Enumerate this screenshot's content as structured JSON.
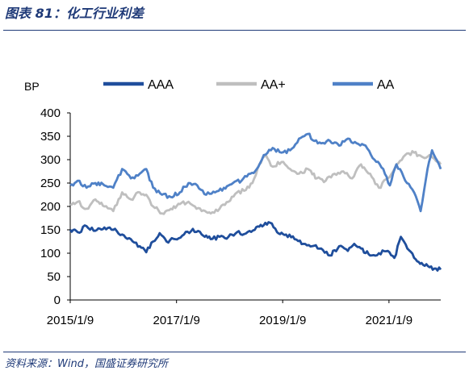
{
  "figure_title": "图表 81：化工行业利差",
  "source": "资料来源：Wind，国盛证券研究所",
  "chart_data": {
    "type": "line",
    "ylabel": "BP",
    "ylim": [
      0,
      400
    ],
    "yticks": [
      0,
      50,
      100,
      150,
      200,
      250,
      300,
      350,
      400
    ],
    "xtick_labels": [
      "2015/1/9",
      "2017/1/9",
      "2019/1/9",
      "2021/1/9"
    ],
    "xtick_values": [
      "2015-01-09",
      "2017-01-09",
      "2019-01-09",
      "2021-01-09"
    ],
    "xlim": [
      "2015-01-09",
      "2021-12-31"
    ],
    "grid": false,
    "legend_position": "top",
    "series": [
      {
        "name": "AAA",
        "color": "#1f4e9c",
        "points": [
          [
            "2015-01-09",
            150
          ],
          [
            "2015-03-01",
            145
          ],
          [
            "2015-05-01",
            158
          ],
          [
            "2015-07-01",
            148
          ],
          [
            "2015-09-01",
            155
          ],
          [
            "2015-11-01",
            150
          ],
          [
            "2016-01-01",
            140
          ],
          [
            "2016-03-01",
            130
          ],
          [
            "2016-05-01",
            115
          ],
          [
            "2016-06-15",
            102
          ],
          [
            "2016-08-01",
            125
          ],
          [
            "2016-09-15",
            143
          ],
          [
            "2016-11-01",
            125
          ],
          [
            "2017-01-01",
            130
          ],
          [
            "2017-03-01",
            140
          ],
          [
            "2017-05-01",
            152
          ],
          [
            "2017-07-01",
            140
          ],
          [
            "2017-09-01",
            130
          ],
          [
            "2017-11-01",
            135
          ],
          [
            "2018-01-01",
            135
          ],
          [
            "2018-03-01",
            145
          ],
          [
            "2018-05-01",
            142
          ],
          [
            "2018-07-01",
            150
          ],
          [
            "2018-09-01",
            160
          ],
          [
            "2018-10-15",
            165
          ],
          [
            "2018-12-01",
            145
          ],
          [
            "2019-02-01",
            140
          ],
          [
            "2019-04-01",
            130
          ],
          [
            "2019-06-01",
            120
          ],
          [
            "2019-08-01",
            115
          ],
          [
            "2019-10-01",
            110
          ],
          [
            "2019-12-01",
            95
          ],
          [
            "2020-02-01",
            115
          ],
          [
            "2020-04-01",
            105
          ],
          [
            "2020-05-15",
            120
          ],
          [
            "2020-07-01",
            110
          ],
          [
            "2020-09-01",
            95
          ],
          [
            "2020-11-01",
            100
          ],
          [
            "2021-01-01",
            105
          ],
          [
            "2021-02-15",
            90
          ],
          [
            "2021-04-01",
            135
          ],
          [
            "2021-05-15",
            110
          ],
          [
            "2021-07-01",
            90
          ],
          [
            "2021-09-01",
            75
          ],
          [
            "2021-10-15",
            70
          ],
          [
            "2021-12-31",
            65
          ]
        ]
      },
      {
        "name": "AA+",
        "color": "#bfbfbf",
        "points": [
          [
            "2015-01-09",
            205
          ],
          [
            "2015-03-01",
            210
          ],
          [
            "2015-05-01",
            195
          ],
          [
            "2015-07-01",
            215
          ],
          [
            "2015-09-01",
            200
          ],
          [
            "2015-11-01",
            190
          ],
          [
            "2016-01-01",
            230
          ],
          [
            "2016-03-01",
            215
          ],
          [
            "2016-05-01",
            230
          ],
          [
            "2016-06-15",
            225
          ],
          [
            "2016-08-01",
            200
          ],
          [
            "2016-10-01",
            185
          ],
          [
            "2016-12-01",
            195
          ],
          [
            "2017-02-01",
            205
          ],
          [
            "2017-04-01",
            210
          ],
          [
            "2017-05-15",
            200
          ],
          [
            "2017-07-01",
            190
          ],
          [
            "2017-09-01",
            185
          ],
          [
            "2017-11-01",
            195
          ],
          [
            "2018-01-01",
            210
          ],
          [
            "2018-03-01",
            230
          ],
          [
            "2018-05-01",
            235
          ],
          [
            "2018-06-15",
            250
          ],
          [
            "2018-08-01",
            290
          ],
          [
            "2018-09-15",
            310
          ],
          [
            "2018-11-01",
            285
          ],
          [
            "2019-01-01",
            295
          ],
          [
            "2019-03-01",
            280
          ],
          [
            "2019-05-01",
            270
          ],
          [
            "2019-07-01",
            280
          ],
          [
            "2019-09-01",
            260
          ],
          [
            "2019-11-01",
            255
          ],
          [
            "2020-01-01",
            270
          ],
          [
            "2020-03-01",
            275
          ],
          [
            "2020-05-01",
            260
          ],
          [
            "2020-07-01",
            290
          ],
          [
            "2020-09-01",
            270
          ],
          [
            "2020-11-01",
            240
          ],
          [
            "2021-01-01",
            260
          ],
          [
            "2021-03-01",
            290
          ],
          [
            "2021-05-01",
            310
          ],
          [
            "2021-07-01",
            315
          ],
          [
            "2021-09-01",
            305
          ],
          [
            "2021-10-15",
            310
          ],
          [
            "2021-12-31",
            290
          ]
        ]
      },
      {
        "name": "AA",
        "color": "#4f81c7",
        "points": [
          [
            "2015-01-09",
            245
          ],
          [
            "2015-03-01",
            255
          ],
          [
            "2015-05-01",
            240
          ],
          [
            "2015-07-01",
            250
          ],
          [
            "2015-09-01",
            245
          ],
          [
            "2015-11-01",
            240
          ],
          [
            "2016-01-01",
            280
          ],
          [
            "2016-03-01",
            260
          ],
          [
            "2016-05-01",
            270
          ],
          [
            "2016-06-15",
            280
          ],
          [
            "2016-08-01",
            240
          ],
          [
            "2016-10-01",
            225
          ],
          [
            "2016-12-01",
            220
          ],
          [
            "2017-02-01",
            230
          ],
          [
            "2017-04-01",
            250
          ],
          [
            "2017-06-01",
            245
          ],
          [
            "2017-08-01",
            225
          ],
          [
            "2017-10-01",
            230
          ],
          [
            "2017-12-01",
            240
          ],
          [
            "2018-02-01",
            250
          ],
          [
            "2018-04-01",
            255
          ],
          [
            "2018-06-01",
            270
          ],
          [
            "2018-07-15",
            280
          ],
          [
            "2018-09-01",
            310
          ],
          [
            "2018-11-01",
            325
          ],
          [
            "2019-01-01",
            315
          ],
          [
            "2019-03-01",
            320
          ],
          [
            "2019-05-01",
            345
          ],
          [
            "2019-07-01",
            355
          ],
          [
            "2019-08-15",
            340
          ],
          [
            "2019-10-01",
            335
          ],
          [
            "2019-12-01",
            340
          ],
          [
            "2020-02-01",
            330
          ],
          [
            "2020-04-01",
            345
          ],
          [
            "2020-06-01",
            335
          ],
          [
            "2020-08-01",
            330
          ],
          [
            "2020-10-01",
            300
          ],
          [
            "2020-12-01",
            280
          ],
          [
            "2021-01-15",
            245
          ],
          [
            "2021-03-01",
            290
          ],
          [
            "2021-05-01",
            255
          ],
          [
            "2021-07-01",
            230
          ],
          [
            "2021-08-15",
            190
          ],
          [
            "2021-10-01",
            280
          ],
          [
            "2021-11-01",
            320
          ],
          [
            "2021-12-31",
            280
          ]
        ]
      }
    ]
  }
}
